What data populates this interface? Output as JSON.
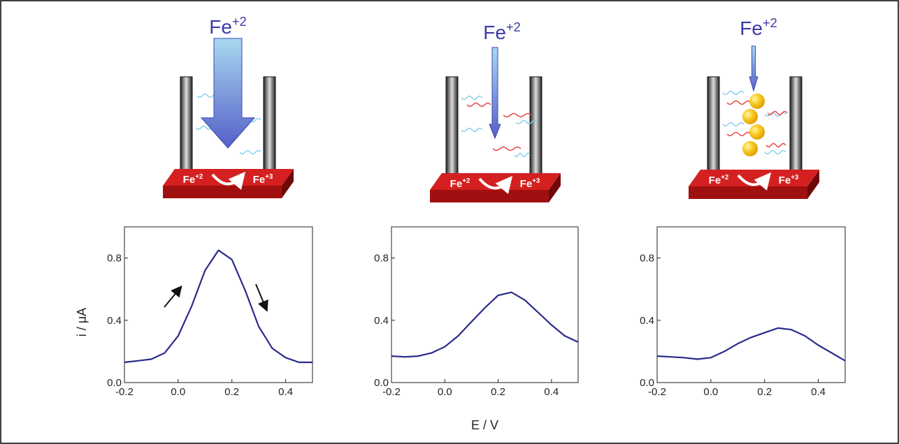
{
  "diagrams": [
    {
      "top": [
        "Fe",
        "+2"
      ],
      "left": [
        "Fe",
        "+2"
      ],
      "right": [
        "Fe",
        "+3"
      ]
    },
    {
      "top": [
        "Fe",
        "+2"
      ],
      "left": [
        "Fe",
        "+2"
      ],
      "right": [
        "Fe",
        "+3"
      ]
    },
    {
      "top": [
        "Fe",
        "+2"
      ],
      "left": [
        "Fe",
        "+2"
      ],
      "right": [
        "Fe",
        "+3"
      ]
    }
  ],
  "chart_data": [
    {
      "type": "line",
      "y_label": "i / μA",
      "x": [
        -0.2,
        -0.15,
        -0.1,
        -0.05,
        0,
        0.05,
        0.1,
        0.15,
        0.2,
        0.25,
        0.3,
        0.35,
        0.4,
        0.45,
        0.5
      ],
      "series": [
        {
          "color": "#2a2a8c",
          "values": [
            0.13,
            0.14,
            0.15,
            0.19,
            0.3,
            0.49,
            0.72,
            0.85,
            0.79,
            0.59,
            0.36,
            0.22,
            0.16,
            0.13,
            0.13
          ]
        }
      ],
      "xlim": [
        -0.2,
        0.5
      ],
      "ylim": [
        0,
        1
      ],
      "xticks": [
        -0.2,
        {
          "value": 0,
          "label": "0.0"
        },
        0.2,
        0.4
      ],
      "yticks": [
        {
          "value": 0,
          "label": "0.0"
        },
        0.4,
        0.8
      ]
    },
    {
      "type": "line",
      "x_label": "E / V",
      "x": [
        -0.2,
        -0.15,
        -0.1,
        -0.05,
        0,
        0.05,
        0.1,
        0.15,
        0.2,
        0.25,
        0.3,
        0.35,
        0.4,
        0.45,
        0.5
      ],
      "series": [
        {
          "color": "#2a2a8c",
          "values": [
            0.17,
            0.165,
            0.17,
            0.19,
            0.23,
            0.3,
            0.39,
            0.48,
            0.56,
            0.58,
            0.53,
            0.45,
            0.37,
            0.3,
            0.26
          ]
        }
      ],
      "xlim": [
        -0.2,
        0.5
      ],
      "ylim": [
        0,
        1
      ],
      "xticks": [
        -0.2,
        {
          "value": 0,
          "label": "0.0"
        },
        0.2,
        0.4
      ],
      "yticks": [
        {
          "value": 0,
          "label": "0.0"
        },
        0.4,
        0.8
      ]
    },
    {
      "type": "line",
      "x": [
        -0.2,
        -0.15,
        -0.1,
        -0.05,
        0,
        0.05,
        0.1,
        0.15,
        0.2,
        0.25,
        0.3,
        0.35,
        0.4,
        0.45,
        0.5
      ],
      "series": [
        {
          "color": "#2a2a8c",
          "values": [
            0.17,
            0.165,
            0.16,
            0.15,
            0.16,
            0.2,
            0.25,
            0.29,
            0.32,
            0.35,
            0.34,
            0.3,
            0.24,
            0.19,
            0.14
          ]
        }
      ],
      "xlim": [
        -0.2,
        0.5
      ],
      "ylim": [
        0,
        1
      ],
      "xticks": [
        -0.2,
        {
          "value": 0,
          "label": "0.0"
        },
        0.2,
        0.4
      ],
      "yticks": [
        {
          "value": 0,
          "label": "0.0"
        },
        0.4,
        0.8
      ]
    }
  ]
}
